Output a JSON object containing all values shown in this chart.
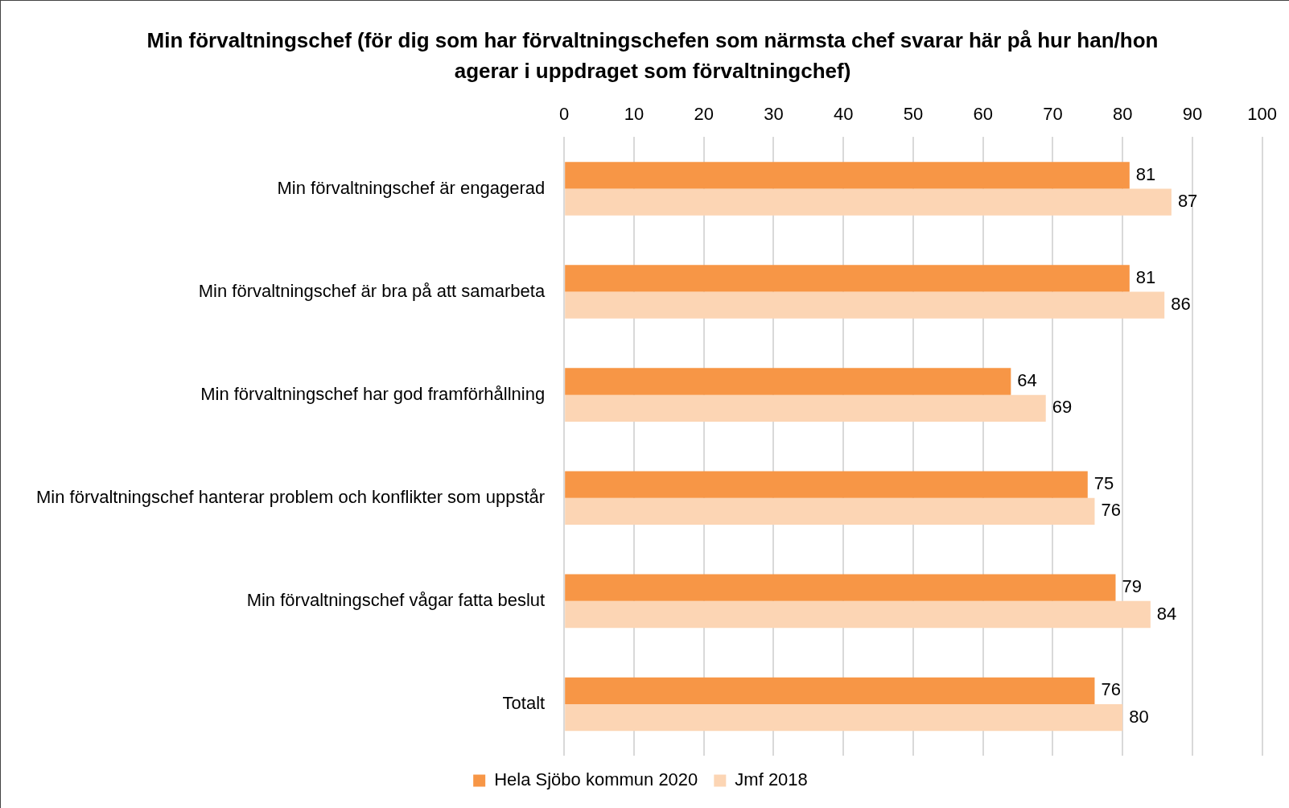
{
  "chart_data": {
    "type": "bar",
    "orientation": "horizontal",
    "title": "Min förvaltningschef (för dig som har förvaltningschefen som närmsta chef svarar här på hur han/hon agerar i uppdraget som förvaltningchef)",
    "categories": [
      "Min förvaltningschef är engagerad",
      "Min förvaltningschef är bra på att samarbeta",
      "Min förvaltningschef har god framförhållning",
      "Min förvaltningschef hanterar problem och konflikter som uppstår",
      "Min förvaltningschef vågar fatta beslut",
      "Totalt"
    ],
    "series": [
      {
        "name": "Hela Sjöbo kommun 2020",
        "color": "#f79646",
        "values": [
          81,
          81,
          64,
          75,
          79,
          76
        ]
      },
      {
        "name": "Jmf 2018",
        "color": "#fcd5b4",
        "values": [
          87,
          86,
          69,
          76,
          84,
          80
        ]
      }
    ],
    "xlim": [
      0,
      100
    ],
    "xticks": [
      0,
      10,
      20,
      30,
      40,
      50,
      60,
      70,
      80,
      90,
      100
    ],
    "grid": "x",
    "legend": "bottom",
    "data_labels": true
  }
}
